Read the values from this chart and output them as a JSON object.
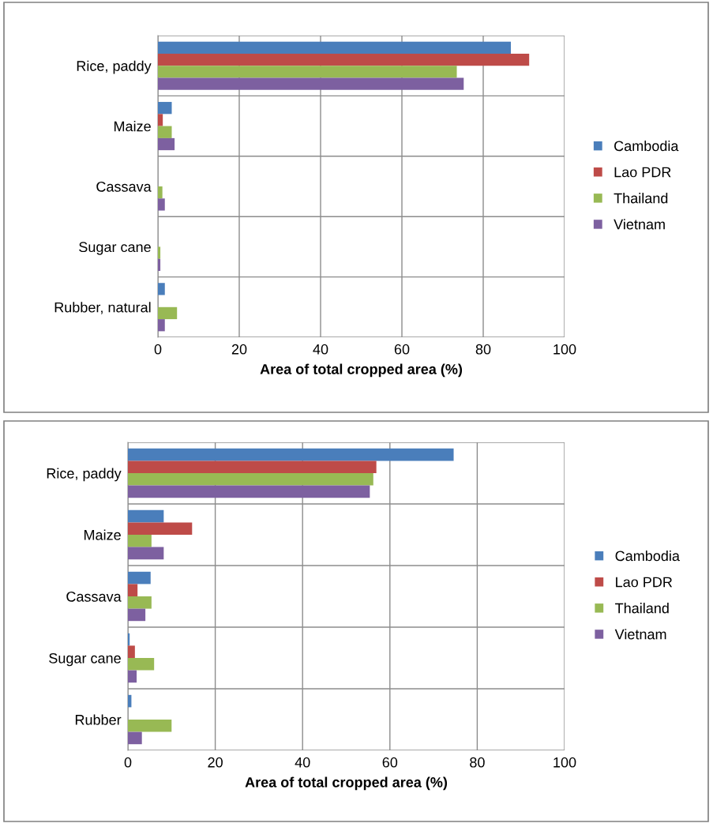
{
  "chart_data": [
    {
      "type": "bar",
      "orientation": "horizontal",
      "xlabel": "Area of total cropped area (%)",
      "categories": [
        "Rice, paddy",
        "Maize",
        "Cassava",
        "Sugar cane",
        "Rubber, natural"
      ],
      "xlim": [
        0,
        100
      ],
      "xticks": [
        0,
        20,
        40,
        60,
        80,
        100
      ],
      "grid": true,
      "legend": "right",
      "series": [
        {
          "name": "Cambodia",
          "color": "#4a7ebb",
          "values": [
            86.8,
            3.4,
            0,
            0,
            1.7
          ]
        },
        {
          "name": "Lao PDR",
          "color": "#be4b48",
          "values": [
            91.3,
            1.2,
            0,
            0,
            0
          ]
        },
        {
          "name": "Thailand",
          "color": "#98b954",
          "values": [
            73.5,
            3.4,
            1.1,
            0.6,
            4.7
          ]
        },
        {
          "name": "Vietnam",
          "color": "#7d60a0",
          "values": [
            75.2,
            4.1,
            1.7,
            0.6,
            1.7
          ]
        }
      ]
    },
    {
      "type": "bar",
      "orientation": "horizontal",
      "xlabel": "Area of total cropped area (%)",
      "categories": [
        "Rice, paddy",
        "Maize",
        "Cassava",
        "Sugar cane",
        "Rubber"
      ],
      "xlim": [
        0,
        100
      ],
      "xticks": [
        0,
        20,
        40,
        60,
        80,
        100
      ],
      "grid": true,
      "legend": "right",
      "series": [
        {
          "name": "Cambodia",
          "color": "#4a7ebb",
          "values": [
            74.6,
            8.2,
            5.2,
            0.4,
            0.8
          ]
        },
        {
          "name": "Lao PDR",
          "color": "#be4b48",
          "values": [
            56.9,
            14.7,
            2.2,
            1.6,
            0
          ]
        },
        {
          "name": "Thailand",
          "color": "#98b954",
          "values": [
            56.2,
            5.4,
            5.4,
            6.0,
            10.0
          ]
        },
        {
          "name": "Vietnam",
          "color": "#7d60a0",
          "values": [
            55.4,
            8.2,
            4.0,
            2.0,
            3.2
          ]
        }
      ]
    }
  ]
}
